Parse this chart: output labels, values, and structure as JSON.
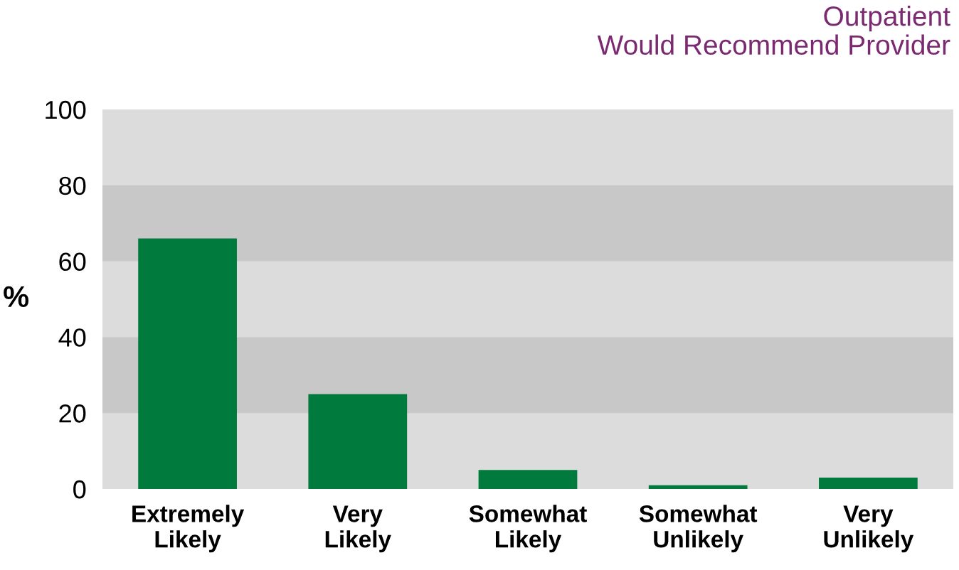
{
  "chart_data": {
    "type": "bar",
    "title": "Outpatient\nWould Recommend Provider",
    "ylabel": "%",
    "categories": [
      "Extremely\nLikely",
      "Very\nLikely",
      "Somewhat\nLikely",
      "Somewhat\nUnlikely",
      "Very\nUnlikely"
    ],
    "values": [
      66,
      25,
      5,
      1,
      3
    ],
    "color": "#007a3d",
    "ylim": [
      0,
      100
    ],
    "yticks": [
      0,
      20,
      40,
      60,
      80,
      100
    ],
    "grid": false,
    "legend": false,
    "bands": [
      {
        "axis": "y",
        "from": 20,
        "to": 40,
        "color": "#c8c8c8"
      },
      {
        "axis": "y",
        "from": 60,
        "to": 80,
        "color": "#c8c8c8"
      }
    ]
  }
}
